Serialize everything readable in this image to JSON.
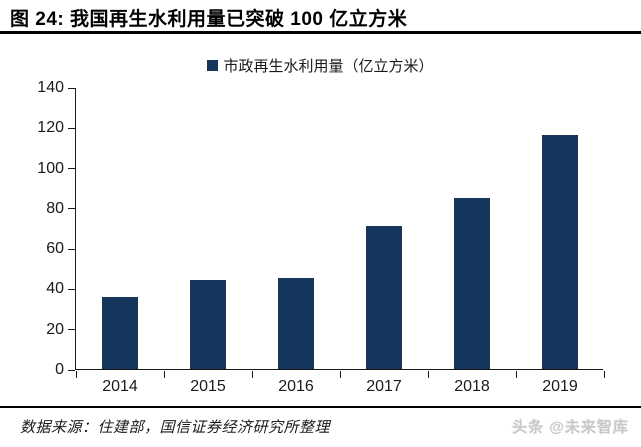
{
  "figure": {
    "title": "图 24:  我国再生水利用量已突破 100 亿立方米",
    "source_note": "数据来源：住建部，国信证券经济研究所整理",
    "watermark": "头条 @未来智库"
  },
  "legend": {
    "label": "市政再生水利用量（亿立方米）"
  },
  "colors": {
    "bar": "#16365D",
    "axis": "#1a1a1a",
    "rule": "#000000",
    "text": "#1a1a1a",
    "watermark": "#c7c7c7"
  },
  "chart_data": {
    "type": "bar",
    "categories": [
      "2014",
      "2015",
      "2016",
      "2017",
      "2018",
      "2019"
    ],
    "values": [
      36,
      44,
      45,
      71,
      85,
      116
    ],
    "series": [
      {
        "name": "市政再生水利用量（亿立方米）",
        "values": [
          36,
          44,
          45,
          71,
          85,
          116
        ]
      }
    ],
    "title": "图 24: 我国再生水利用量已突破 100 亿立方米",
    "xlabel": "",
    "ylabel": "",
    "unit": "亿立方米",
    "ylim": [
      0,
      140
    ],
    "ytick_step": 20,
    "grid": false,
    "legend_position": "top-center",
    "bar_color": "#16365D"
  }
}
